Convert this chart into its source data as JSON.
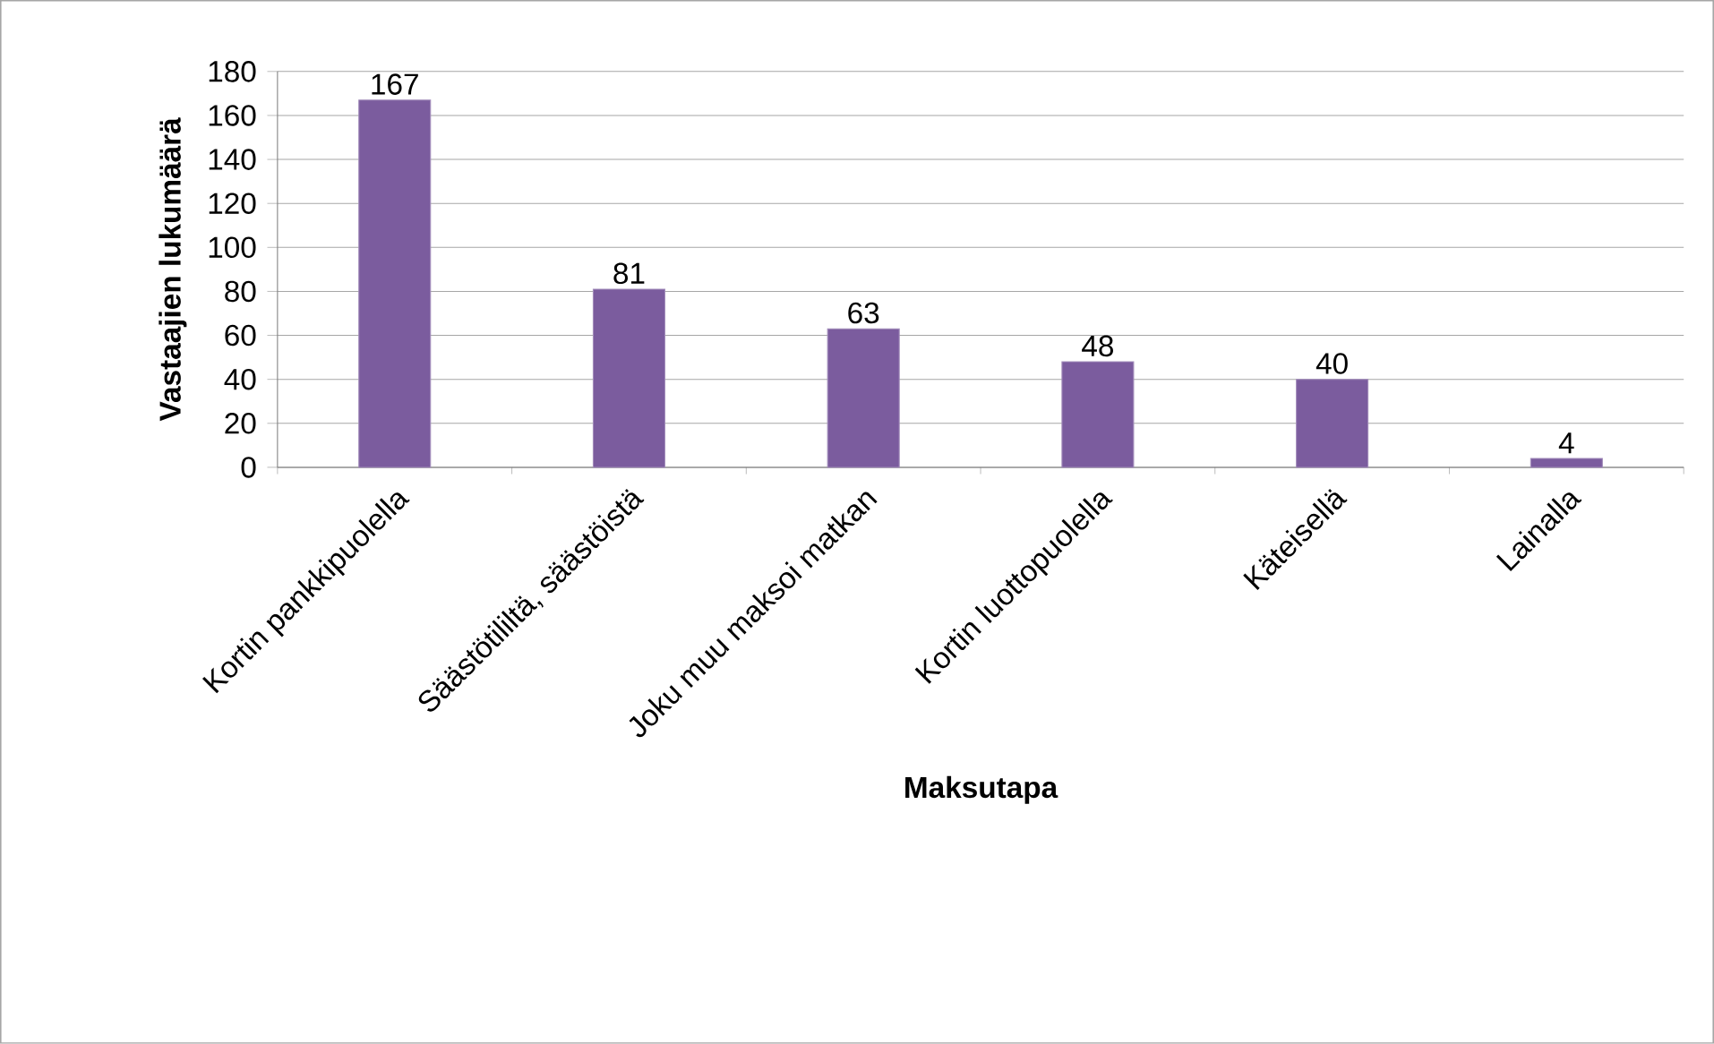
{
  "chart_data": {
    "type": "bar",
    "xlabel": "Maksutapa",
    "ylabel": "Vastaajien lukumäärä",
    "categories": [
      "Kortin pankkipuolella",
      "Säästötililtä, säästöistä",
      "Joku muu maksoi matkan",
      "Kortin luottopuolella",
      "Käteisellä",
      "Lainalla"
    ],
    "values": [
      167,
      81,
      63,
      48,
      40,
      4
    ],
    "color": "#7b5c9e",
    "ylim": [
      0,
      180
    ],
    "yticks": [
      0,
      20,
      40,
      60,
      80,
      100,
      120,
      140,
      160,
      180
    ],
    "grid": "y",
    "data_labels": true
  }
}
